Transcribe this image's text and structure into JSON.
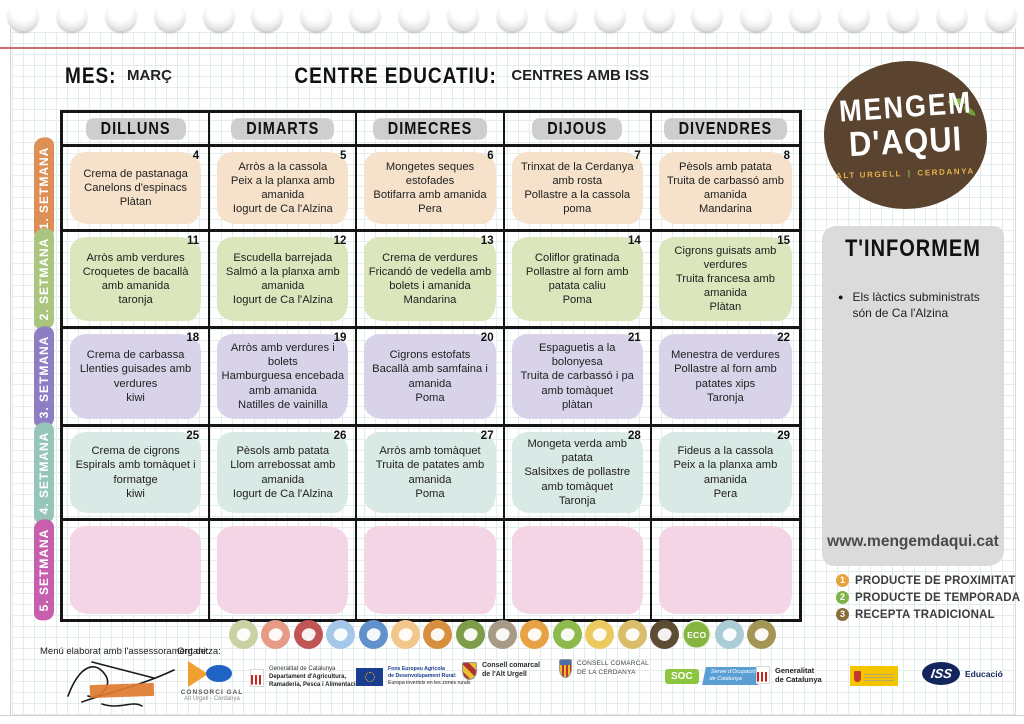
{
  "page": {
    "mes_label": "MES:",
    "mes_value": "MARÇ",
    "centre_label": "CENTRE EDUCATIU:",
    "centre_value": "CENTRES AMB ISS"
  },
  "logo": {
    "line1": "MENGEM",
    "line2": "D'AQUI",
    "region_left": "ALT URGELL",
    "divider": "|",
    "region_right": "CERDANYA",
    "circle_color": "#5a432f",
    "leaf_color": "#8cb84b",
    "region_color": "#e6b24a"
  },
  "info_box": {
    "title": "T'INFORMEM",
    "bullets": [
      "Els làctics subministrats són de Ca l'Alzina"
    ],
    "website": "www.mengemdaqui.cat"
  },
  "legend": {
    "items": [
      {
        "num": "1",
        "color": "#e8a33d",
        "label": "PRODUCTE DE PROXIMITAT"
      },
      {
        "num": "2",
        "color": "#7fb347",
        "label": "PRODUCTE DE TEMPORADA"
      },
      {
        "num": "3",
        "color": "#8a6d3b",
        "label": "RECEPTA TRADICIONAL"
      }
    ]
  },
  "calendar": {
    "day_headers": [
      "DILLUNS",
      "DIMARTS",
      "DIMECRES",
      "DIJOUS",
      "DIVENDRES"
    ],
    "weeks": [
      {
        "label": "1. SETMANA",
        "label_color": "#dd8f55",
        "cell_color": "#f6e2ca",
        "days": [
          {
            "number": "4",
            "lines": [
              "Crema de pastanaga",
              "Canelons d'espinacs",
              "Plàtan"
            ]
          },
          {
            "number": "5",
            "lines": [
              "Arròs a la cassola",
              "Peix a la planxa amb amanida",
              "Iogurt de Ca l'Alzina"
            ]
          },
          {
            "number": "6",
            "lines": [
              "Mongetes seques estofades",
              "Botifarra amb amanida",
              "Pera"
            ]
          },
          {
            "number": "7",
            "lines": [
              "Trinxat de la Cerdanya amb rosta",
              "Pollastre a la cassola",
              "poma"
            ]
          },
          {
            "number": "8",
            "lines": [
              "Pèsols amb patata",
              "Truita de carbassó amb amanida",
              "Mandarina"
            ]
          }
        ]
      },
      {
        "label": "2. SETMANA",
        "label_color": "#a9c57f",
        "cell_color": "#dbe6bd",
        "days": [
          {
            "number": "11",
            "lines": [
              "Arròs amb verdures",
              "Croquetes de bacallà amb amanida",
              "taronja"
            ]
          },
          {
            "number": "12",
            "lines": [
              "Escudella barrejada",
              "Salmó a la planxa amb amanida",
              "Iogurt de Ca l'Alzina"
            ]
          },
          {
            "number": "13",
            "lines": [
              "Crema de verdures",
              "Fricandó de vedella amb bolets i amanida",
              "Mandarina"
            ]
          },
          {
            "number": "14",
            "lines": [
              "Coliflor gratinada",
              "Pollastre al forn amb patata caliu",
              "Poma"
            ]
          },
          {
            "number": "15",
            "lines": [
              "Cigrons guisats amb verdures",
              "Truita francesa amb amanida",
              "Plàtan"
            ]
          }
        ]
      },
      {
        "label": "3. SETMANA",
        "label_color": "#8d7ec4",
        "cell_color": "#d9d3ea",
        "days": [
          {
            "number": "18",
            "lines": [
              "Crema de carbassa",
              "Llenties guisades amb verdures",
              "kiwi"
            ]
          },
          {
            "number": "19",
            "lines": [
              "Arròs amb verdures i bolets",
              "Hamburguesa encebada amb amanida",
              "Natilles de vainilla"
            ]
          },
          {
            "number": "20",
            "lines": [
              "Cigrons estofats",
              "Bacallà amb samfaina i amanida",
              "Poma"
            ]
          },
          {
            "number": "21",
            "lines": [
              "Espaguetis a la bolonyesa",
              "Truita de carbassó i pa amb tomàquet",
              "plàtan"
            ]
          },
          {
            "number": "22",
            "lines": [
              "Menestra de verdures",
              "Pollastre al forn amb patates xips",
              "Taronja"
            ]
          }
        ]
      },
      {
        "label": "4. SETMANA",
        "label_color": "#96c5b9",
        "cell_color": "#d9e9e5",
        "days": [
          {
            "number": "25",
            "lines": [
              "Crema de cigrons",
              "Espirals amb tomàquet i formatge",
              "kiwi"
            ]
          },
          {
            "number": "26",
            "lines": [
              "Pèsols amb patata",
              "Llom arrebossat amb amanida",
              "Iogurt de Ca l'Alzina"
            ]
          },
          {
            "number": "27",
            "lines": [
              "Arròs amb tomàquet",
              "Truita de patates amb amanida",
              "Poma"
            ]
          },
          {
            "number": "28",
            "lines": [
              "Mongeta verda amb patata",
              "Salsitxes de pollastre amb tomàquet",
              "Taronja"
            ]
          },
          {
            "number": "29",
            "lines": [
              "Fideus a la cassola",
              "Peix a la planxa amb amanida",
              "Pera"
            ]
          }
        ]
      },
      {
        "label": "5. SETMANA",
        "label_color": "#c75fae",
        "cell_color": "#f3d5e5",
        "days": [
          {
            "number": "",
            "lines": []
          },
          {
            "number": "",
            "lines": []
          },
          {
            "number": "",
            "lines": []
          },
          {
            "number": "",
            "lines": []
          },
          {
            "number": "",
            "lines": []
          }
        ]
      }
    ]
  },
  "food_icons": [
    {
      "name": "grapes-icon",
      "color": "#cbd1a3"
    },
    {
      "name": "drumstick-icon",
      "color": "#e79b87"
    },
    {
      "name": "meat-icon",
      "color": "#c05555"
    },
    {
      "name": "fish-icon",
      "color": "#a5c8e9"
    },
    {
      "name": "sardines-icon",
      "color": "#6191cd"
    },
    {
      "name": "pasta-icon",
      "color": "#f3c68b"
    },
    {
      "name": "corn-icon",
      "color": "#d78e3e"
    },
    {
      "name": "carrot-icon",
      "color": "#7e9d4a"
    },
    {
      "name": "legumes-icon",
      "color": "#a79b87"
    },
    {
      "name": "poultry-icon",
      "color": "#e9a243"
    },
    {
      "name": "apple-icon",
      "color": "#8db94d"
    },
    {
      "name": "pear-icon",
      "color": "#edca60"
    },
    {
      "name": "cheese-icon",
      "color": "#dabd6b"
    },
    {
      "name": "seeds-icon",
      "color": "#5e4b34"
    },
    {
      "name": "eco-icon",
      "color": "#87b541",
      "label": "ECO"
    },
    {
      "name": "milk-icon",
      "color": "#abccd7"
    },
    {
      "name": "oil-icon",
      "color": "#a39655"
    }
  ],
  "footer": {
    "assessorament_label": "Menú elaborat amb l'assessorament de:",
    "organitza_label": "Organitza:",
    "consorci_name": "CONSORCI GAL",
    "consorci_sub": "Alt Urgell - Cerdanya",
    "agricultura_l1": "Generalitat de Catalunya",
    "agricultura_l2": "Departament d'Agricultura,",
    "agricultura_l3": "Ramaderia, Pesca i Alimentació",
    "eu_l1": "Fons Europeu Agrícola",
    "eu_l2": "de Desenvolupament Rural:",
    "eu_l3": "Europa inverteix en les zones rurals",
    "alturgell_l1": "Consell comarcal",
    "alturgell_l2": "de l'Alt Urgell",
    "cerdanya_l1": "CONSELL COMARCAL",
    "cerdanya_l2": "DE LA CERDANYA",
    "soc_abbr": "SOC",
    "soc_l1": "Servei d'Ocupació",
    "soc_l2": "de Catalunya",
    "generalitat_l1": "Generalitat",
    "generalitat_l2": "de Catalunya",
    "iss_abbr": "ISS",
    "iss_sub": "Educació"
  }
}
